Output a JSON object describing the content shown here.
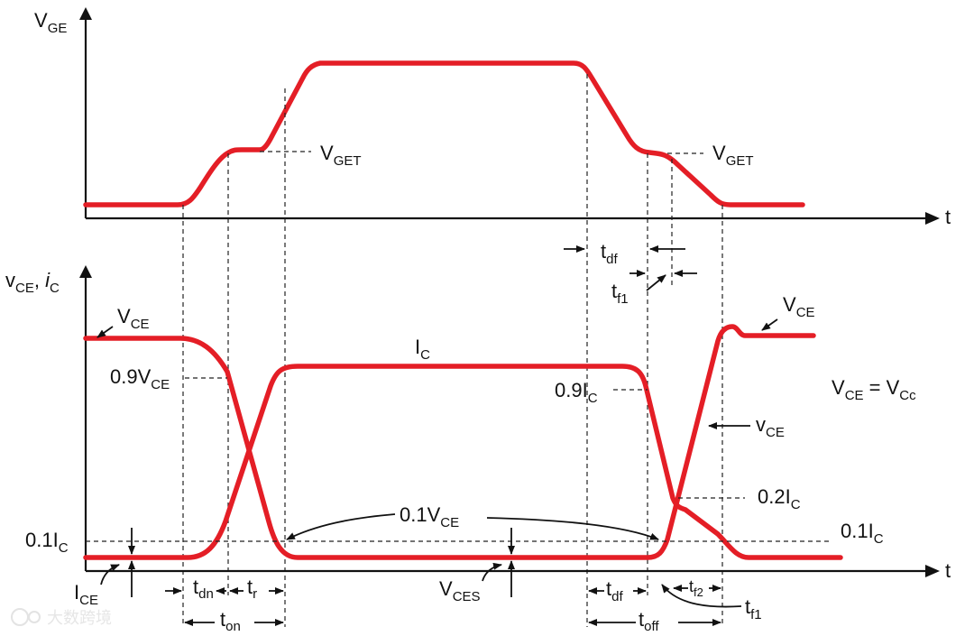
{
  "top": {
    "y_label": {
      "main": "V",
      "sub": "GE"
    },
    "x_label": "t",
    "vget_left": {
      "main": "V",
      "sub": "GET"
    },
    "vget_right": {
      "main": "V",
      "sub": "GET"
    },
    "tdf": {
      "main": "t",
      "sub": "df"
    },
    "tf1": {
      "main": "t",
      "sub": "f1"
    }
  },
  "bottom": {
    "y_label": {
      "v": "v",
      "v_sub": "CE",
      "sep": ", ",
      "i": "i",
      "i_sub": "C"
    },
    "x_label": "t",
    "vce_left": {
      "main": "V",
      "sub": "CE"
    },
    "vce_09": {
      "main": "0.9V",
      "sub": "CE"
    },
    "ic_top": {
      "main": "I",
      "sub": "C"
    },
    "ic_09": {
      "main": "0.9I",
      "sub": "C"
    },
    "vce_right": {
      "main": "V",
      "sub": "CE"
    },
    "vce_eq": {
      "a": "V",
      "a_sub": "CE",
      "eq": " = ",
      "b": "V",
      "b_sub": "Cc"
    },
    "vce_small": {
      "main": "v",
      "sub": "CE"
    },
    "ic_02": {
      "main": "0.2I",
      "sub": "C"
    },
    "ic_01_left": {
      "main": "0.1I",
      "sub": "C"
    },
    "ic_01_right": {
      "main": "0.1I",
      "sub": "C"
    },
    "vce_01": {
      "main": "0.1V",
      "sub": "CE"
    },
    "ice": {
      "main": "I",
      "sub": "CE"
    },
    "vces": {
      "main": "V",
      "sub": "CES"
    },
    "tdn": {
      "main": "t",
      "sub": "dn"
    },
    "tr": {
      "main": "t",
      "sub": "r"
    },
    "ton": {
      "main": "t",
      "sub": "on"
    },
    "tdf": {
      "main": "t",
      "sub": "df"
    },
    "tf2": {
      "main": "t",
      "sub": "f2"
    },
    "toff": {
      "main": "t",
      "sub": "off"
    },
    "tf1": {
      "main": "t",
      "sub": "f1"
    }
  },
  "watermark": "大数跨境",
  "colors": {
    "waveform": "#e41e26",
    "axis": "#111111"
  }
}
